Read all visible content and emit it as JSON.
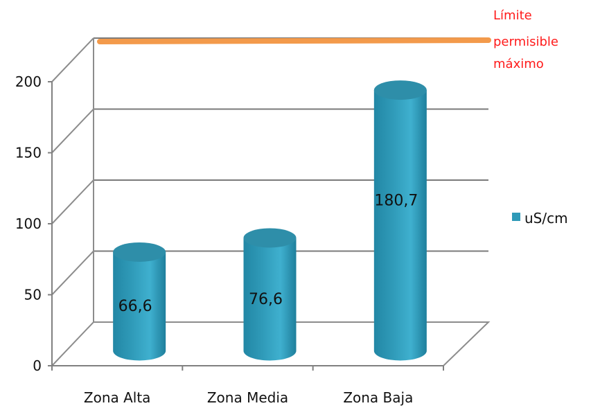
{
  "chart_data": {
    "type": "bar",
    "categories": [
      "Zona Alta",
      "Zona Media",
      "Zona Baja"
    ],
    "series": [
      {
        "name": "uS/cm",
        "values": [
          66.6,
          76.6,
          180.7
        ],
        "color": "#2f9ab8"
      }
    ],
    "data_labels": [
      "66,6",
      "76,6",
      "180,7"
    ],
    "ylim": [
      0,
      200
    ],
    "yticks": [
      0,
      50,
      100,
      150,
      200
    ],
    "ytick_labels": [
      "0",
      "50",
      "100",
      "150",
      "200"
    ],
    "grid": true,
    "legend_position": "right",
    "reference_line": {
      "label_lines": [
        "Límite",
        "permisible",
        "máximo"
      ],
      "color": "#f39a4b",
      "label_color": "#ff1a1a"
    },
    "xlabel": "",
    "ylabel": "",
    "title": ""
  }
}
